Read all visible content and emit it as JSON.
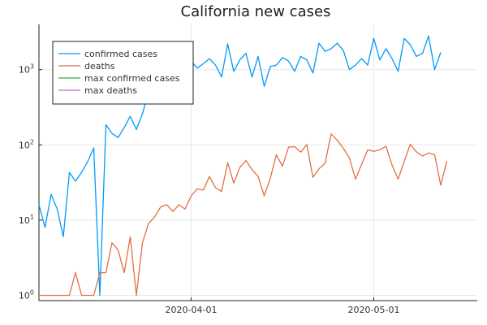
{
  "chart_data": {
    "type": "line",
    "title": "California new cases",
    "xlabel": "",
    "ylabel": "",
    "x_axis": {
      "type": "date",
      "start_date": "2020-03-07",
      "end_date": "2020-05-18",
      "tick_dates": [
        "2020-04-01",
        "2020-05-01"
      ],
      "tick_labels": [
        "2020-04-01",
        "2020-05-01"
      ]
    },
    "y_axis": {
      "scale": "log",
      "ylim": [
        0.85,
        4000
      ],
      "ticks": [
        1,
        10,
        100,
        1000
      ],
      "tick_labels": [
        {
          "base": "10",
          "exp": "0"
        },
        {
          "base": "10",
          "exp": "1"
        },
        {
          "base": "10",
          "exp": "2"
        },
        {
          "base": "10",
          "exp": "3"
        }
      ]
    },
    "grid": true,
    "legend": {
      "placement": "top-left"
    },
    "series": [
      {
        "name": "confirmed cases",
        "color": "#009AFA",
        "points": [
          [
            "2020-03-07",
            16
          ],
          [
            "2020-03-08",
            8
          ],
          [
            "2020-03-09",
            22
          ],
          [
            "2020-03-10",
            14
          ],
          [
            "2020-03-11",
            6
          ],
          [
            "2020-03-12",
            43
          ],
          [
            "2020-03-13",
            33
          ],
          [
            "2020-03-14",
            43
          ],
          [
            "2020-03-15",
            60
          ],
          [
            "2020-03-16",
            91
          ],
          [
            "2020-03-17",
            1
          ],
          [
            "2020-03-18",
            185
          ],
          [
            "2020-03-19",
            142
          ],
          [
            "2020-03-20",
            125
          ],
          [
            "2020-03-21",
            170
          ],
          [
            "2020-03-22",
            240
          ],
          [
            "2020-03-23",
            160
          ],
          [
            "2020-03-24",
            260
          ],
          [
            "2020-03-25",
            500
          ],
          [
            "2020-03-26",
            1050
          ],
          [
            "2020-03-27",
            1500
          ],
          [
            "2020-03-28",
            600
          ],
          [
            "2020-03-29",
            800
          ],
          [
            "2020-03-30",
            420
          ],
          [
            "2020-03-31",
            800
          ],
          [
            "2020-04-01",
            1300
          ],
          [
            "2020-04-02",
            1050
          ],
          [
            "2020-04-03",
            1200
          ],
          [
            "2020-04-04",
            1400
          ],
          [
            "2020-04-05",
            1150
          ],
          [
            "2020-04-06",
            800
          ],
          [
            "2020-04-07",
            2200
          ],
          [
            "2020-04-08",
            950
          ],
          [
            "2020-04-09",
            1350
          ],
          [
            "2020-04-10",
            1650
          ],
          [
            "2020-04-11",
            800
          ],
          [
            "2020-04-12",
            1500
          ],
          [
            "2020-04-13",
            600
          ],
          [
            "2020-04-14",
            1100
          ],
          [
            "2020-04-15",
            1150
          ],
          [
            "2020-04-16",
            1450
          ],
          [
            "2020-04-17",
            1300
          ],
          [
            "2020-04-18",
            950
          ],
          [
            "2020-04-19",
            1500
          ],
          [
            "2020-04-20",
            1350
          ],
          [
            "2020-04-21",
            900
          ],
          [
            "2020-04-22",
            2250
          ],
          [
            "2020-04-23",
            1750
          ],
          [
            "2020-04-24",
            1900
          ],
          [
            "2020-04-25",
            2250
          ],
          [
            "2020-04-26",
            1800
          ],
          [
            "2020-04-27",
            1000
          ],
          [
            "2020-04-28",
            1150
          ],
          [
            "2020-04-29",
            1400
          ],
          [
            "2020-04-30",
            1150
          ],
          [
            "2020-05-01",
            2600
          ],
          [
            "2020-05-02",
            1350
          ],
          [
            "2020-05-03",
            1900
          ],
          [
            "2020-05-04",
            1400
          ],
          [
            "2020-05-05",
            950
          ],
          [
            "2020-05-06",
            2600
          ],
          [
            "2020-05-07",
            2150
          ],
          [
            "2020-05-08",
            1500
          ],
          [
            "2020-05-09",
            1650
          ],
          [
            "2020-05-10",
            2800
          ],
          [
            "2020-05-11",
            1000
          ],
          [
            "2020-05-12",
            1700
          ]
        ]
      },
      {
        "name": "deaths",
        "color": "#E26F46",
        "points": [
          [
            "2020-03-07",
            1
          ],
          [
            "2020-03-08",
            1
          ],
          [
            "2020-03-09",
            1
          ],
          [
            "2020-03-10",
            1
          ],
          [
            "2020-03-11",
            1
          ],
          [
            "2020-03-12",
            1
          ],
          [
            "2020-03-13",
            2
          ],
          [
            "2020-03-14",
            1
          ],
          [
            "2020-03-15",
            1
          ],
          [
            "2020-03-16",
            1
          ],
          [
            "2020-03-17",
            2
          ],
          [
            "2020-03-18",
            2
          ],
          [
            "2020-03-19",
            5
          ],
          [
            "2020-03-20",
            4
          ],
          [
            "2020-03-21",
            2
          ],
          [
            "2020-03-22",
            6
          ],
          [
            "2020-03-23",
            1
          ],
          [
            "2020-03-24",
            5
          ],
          [
            "2020-03-25",
            9
          ],
          [
            "2020-03-26",
            11
          ],
          [
            "2020-03-27",
            15
          ],
          [
            "2020-03-28",
            16
          ],
          [
            "2020-03-29",
            13
          ],
          [
            "2020-03-30",
            16
          ],
          [
            "2020-03-31",
            14
          ],
          [
            "2020-04-01",
            21
          ],
          [
            "2020-04-02",
            26
          ],
          [
            "2020-04-03",
            25
          ],
          [
            "2020-04-04",
            38
          ],
          [
            "2020-04-05",
            27
          ],
          [
            "2020-04-06",
            24
          ],
          [
            "2020-04-07",
            58
          ],
          [
            "2020-04-08",
            31
          ],
          [
            "2020-04-09",
            50
          ],
          [
            "2020-04-10",
            62
          ],
          [
            "2020-04-11",
            47
          ],
          [
            "2020-04-12",
            38
          ],
          [
            "2020-04-13",
            21
          ],
          [
            "2020-04-14",
            36
          ],
          [
            "2020-04-15",
            74
          ],
          [
            "2020-04-16",
            52
          ],
          [
            "2020-04-17",
            93
          ],
          [
            "2020-04-18",
            95
          ],
          [
            "2020-04-19",
            80
          ],
          [
            "2020-04-20",
            101
          ],
          [
            "2020-04-21",
            37
          ],
          [
            "2020-04-22",
            48
          ],
          [
            "2020-04-23",
            57
          ],
          [
            "2020-04-24",
            140
          ],
          [
            "2020-04-25",
            115
          ],
          [
            "2020-04-26",
            90
          ],
          [
            "2020-04-27",
            67
          ],
          [
            "2020-04-28",
            35
          ],
          [
            "2020-04-29",
            55
          ],
          [
            "2020-04-30",
            86
          ],
          [
            "2020-05-01",
            82
          ],
          [
            "2020-05-02",
            86
          ],
          [
            "2020-05-03",
            96
          ],
          [
            "2020-05-04",
            54
          ],
          [
            "2020-05-05",
            35
          ],
          [
            "2020-05-06",
            60
          ],
          [
            "2020-05-07",
            102
          ],
          [
            "2020-05-08",
            81
          ],
          [
            "2020-05-09",
            71
          ],
          [
            "2020-05-10",
            78
          ],
          [
            "2020-05-11",
            74
          ],
          [
            "2020-05-12",
            29
          ],
          [
            "2020-05-13",
            61
          ]
        ]
      },
      {
        "name": "max confirmed cases",
        "color": "#3EA44E",
        "points": []
      },
      {
        "name": "max deaths",
        "color": "#C271D2",
        "points": []
      }
    ]
  }
}
